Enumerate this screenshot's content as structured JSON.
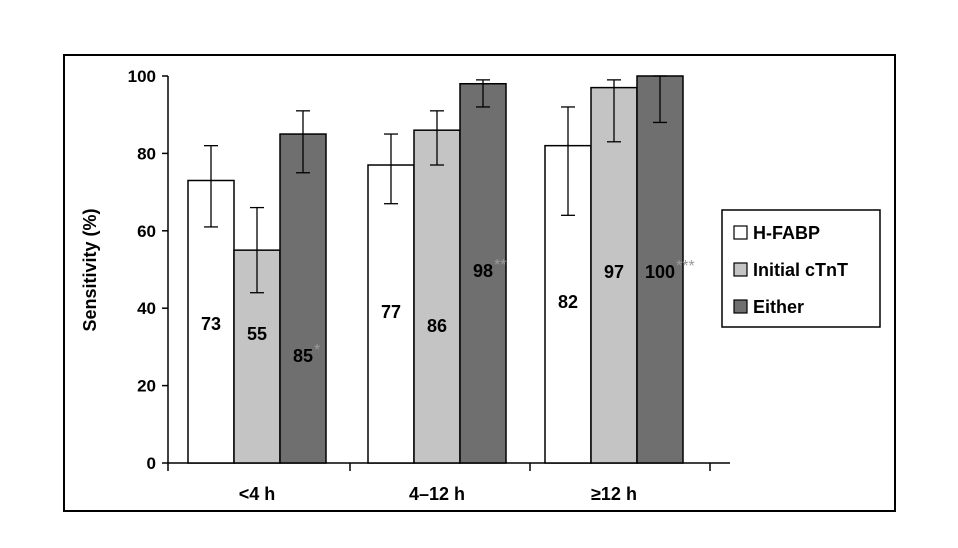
{
  "chart_data": {
    "type": "bar",
    "title": "",
    "xlabel": "",
    "ylabel": "Sensitivity (%)",
    "ylim": [
      0,
      100
    ],
    "yticks": [
      0,
      20,
      40,
      60,
      80,
      100
    ],
    "grid": false,
    "legend_position": "right",
    "categories": [
      "<4 h",
      "4–12 h",
      "≥12 h"
    ],
    "series": [
      {
        "name": "H-FABP",
        "color": "#ffffff",
        "values": [
          73,
          77,
          82
        ],
        "labels": [
          "73",
          "77",
          "82"
        ],
        "error_low": [
          61,
          67,
          64
        ],
        "error_high": [
          82,
          85,
          92
        ],
        "annotations": [
          "",
          "",
          ""
        ]
      },
      {
        "name": "Initial cTnT",
        "color": "#c4c4c4",
        "values": [
          55,
          86,
          97
        ],
        "labels": [
          "55",
          "86",
          "97"
        ],
        "error_low": [
          44,
          77,
          83
        ],
        "error_high": [
          66,
          91,
          99
        ],
        "annotations": [
          "",
          "",
          ""
        ]
      },
      {
        "name": "Either",
        "color": "#6f6f6f",
        "values": [
          85,
          98,
          100
        ],
        "labels": [
          "85",
          "98",
          "100"
        ],
        "error_low": [
          75,
          92,
          88
        ],
        "error_high": [
          91,
          99,
          100
        ],
        "annotations": [
          "*",
          "**",
          "***"
        ]
      }
    ]
  }
}
